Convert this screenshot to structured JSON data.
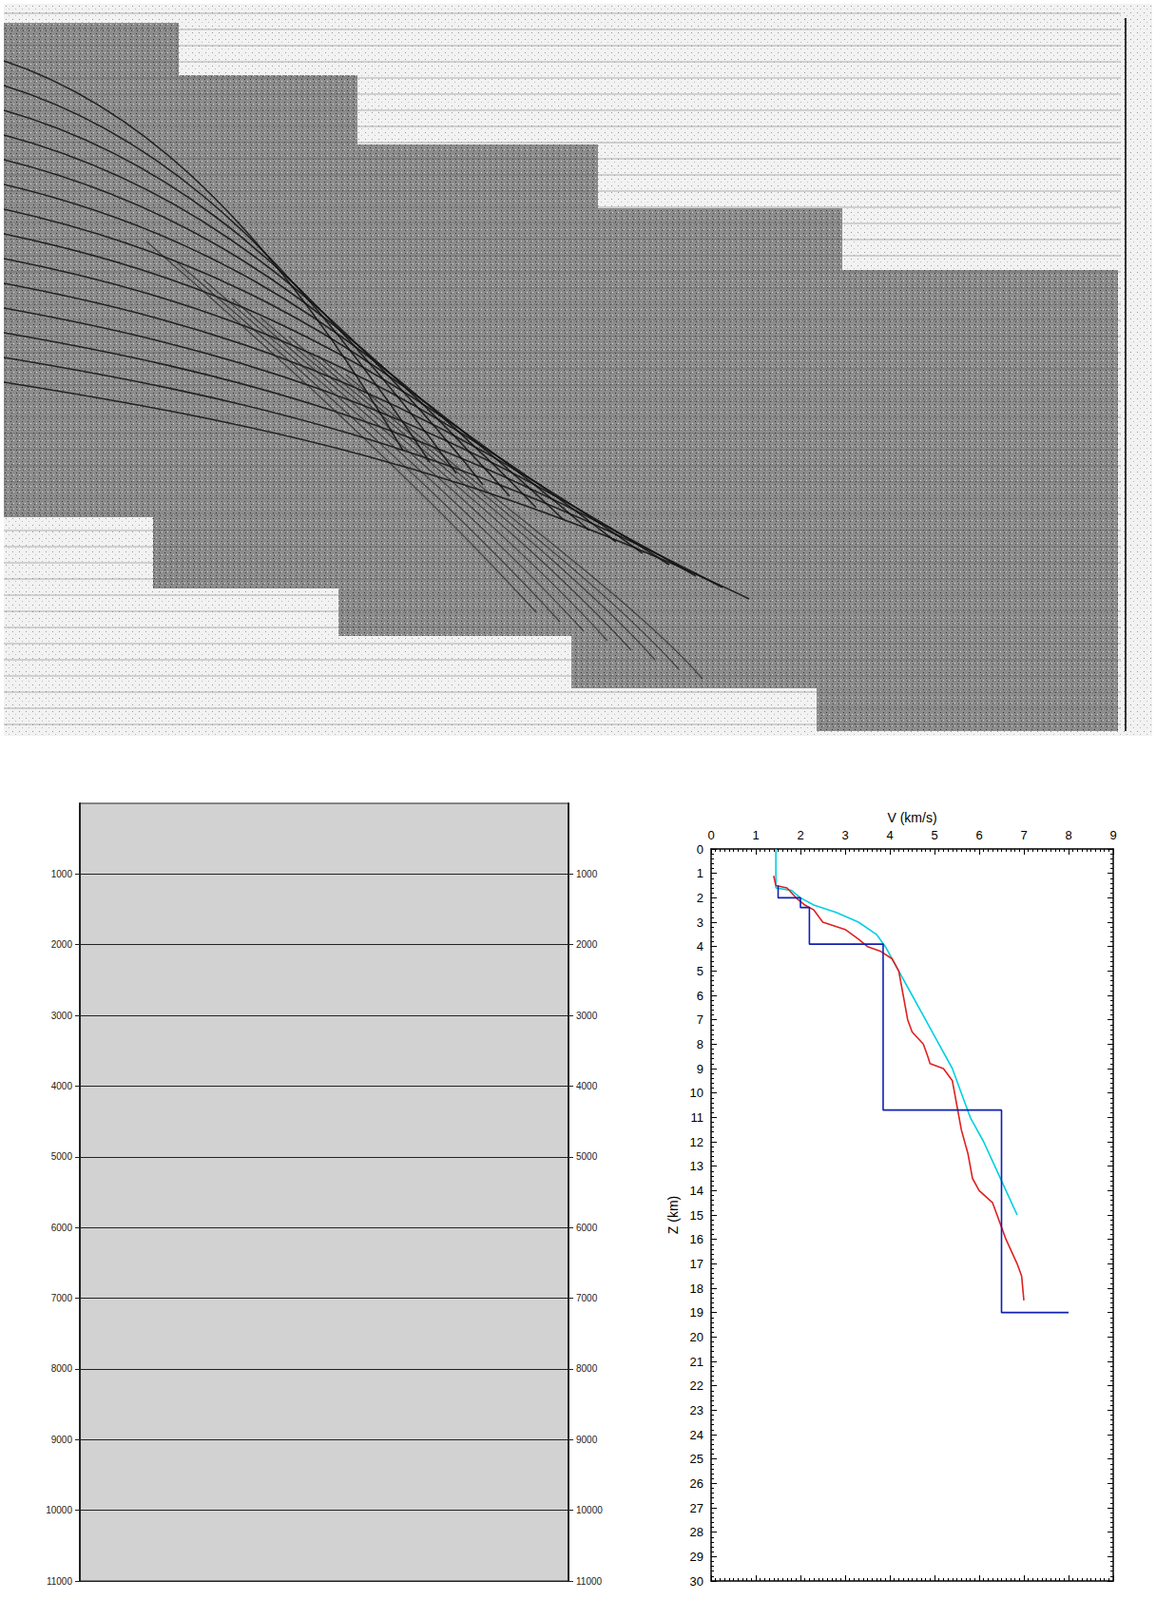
{
  "chart_data": [
    {
      "type": "seismic_section",
      "ylim": [
        0,
        11000
      ],
      "yticks": [
        1000,
        2000,
        3000,
        4000,
        5000,
        6000,
        7000,
        8000,
        9000,
        10000,
        11000
      ],
      "tick_labels": "y",
      "grid": true
    },
    {
      "type": "line",
      "xlabel": "V (km/s)",
      "ylabel": "Z (km)",
      "xlim": [
        0,
        9
      ],
      "xticks": [
        0,
        1,
        2,
        3,
        4,
        5,
        6,
        7,
        8,
        9
      ],
      "ylim": [
        0,
        30
      ],
      "yticks": [
        0,
        1,
        2,
        3,
        4,
        5,
        6,
        7,
        8,
        9,
        10,
        11,
        12,
        13,
        14,
        15,
        16,
        17,
        18,
        19,
        20,
        21,
        22,
        23,
        24,
        25,
        26,
        27,
        28,
        29,
        30
      ],
      "grid": false,
      "series": [
        {
          "color": "#00d0e0",
          "values": [
            [
              1.45,
              0
            ],
            [
              1.45,
              1.6
            ],
            [
              1.8,
              1.7
            ],
            [
              2.0,
              2.0
            ],
            [
              2.3,
              2.3
            ],
            [
              2.8,
              2.6
            ],
            [
              3.3,
              3.0
            ],
            [
              3.7,
              3.5
            ],
            [
              3.9,
              4.0
            ],
            [
              4.2,
              5.0
            ],
            [
              4.5,
              6.0
            ],
            [
              4.8,
              7.0
            ],
            [
              5.1,
              8.0
            ],
            [
              5.4,
              9.0
            ],
            [
              5.6,
              10.0
            ],
            [
              5.8,
              11.0
            ],
            [
              6.1,
              12.0
            ],
            [
              6.35,
              13.0
            ],
            [
              6.6,
              14.0
            ],
            [
              6.85,
              15.0
            ]
          ]
        },
        {
          "color": "#e02020",
          "values": [
            [
              1.4,
              1.1
            ],
            [
              1.45,
              1.5
            ],
            [
              1.7,
              1.6
            ],
            [
              1.9,
              2.0
            ],
            [
              2.1,
              2.3
            ],
            [
              2.3,
              2.5
            ],
            [
              2.5,
              3.0
            ],
            [
              3.0,
              3.3
            ],
            [
              3.3,
              3.7
            ],
            [
              3.5,
              4.0
            ],
            [
              3.8,
              4.2
            ],
            [
              4.05,
              4.5
            ],
            [
              4.2,
              5.0
            ],
            [
              4.3,
              6.0
            ],
            [
              4.4,
              7.0
            ],
            [
              4.5,
              7.5
            ],
            [
              4.75,
              8.0
            ],
            [
              4.85,
              8.5
            ],
            [
              4.9,
              8.8
            ],
            [
              5.2,
              9.0
            ],
            [
              5.4,
              9.5
            ],
            [
              5.5,
              10.5
            ],
            [
              5.6,
              11.5
            ],
            [
              5.75,
              12.5
            ],
            [
              5.85,
              13.5
            ],
            [
              6.0,
              14.0
            ],
            [
              6.3,
              14.5
            ],
            [
              6.4,
              15.0
            ],
            [
              6.6,
              16.0
            ],
            [
              6.85,
              17.0
            ],
            [
              6.95,
              17.5
            ],
            [
              7.0,
              18.5
            ]
          ]
        },
        {
          "color": "#1020b0",
          "values": [
            [
              1.5,
              1.5
            ],
            [
              1.5,
              2.0
            ],
            [
              2.0,
              2.0
            ],
            [
              2.0,
              2.4
            ],
            [
              2.2,
              2.4
            ],
            [
              2.2,
              3.9
            ],
            [
              3.85,
              3.9
            ],
            [
              3.85,
              10.7
            ],
            [
              6.5,
              10.7
            ],
            [
              6.5,
              19.0
            ],
            [
              8.0,
              19.0
            ]
          ]
        }
      ]
    }
  ]
}
